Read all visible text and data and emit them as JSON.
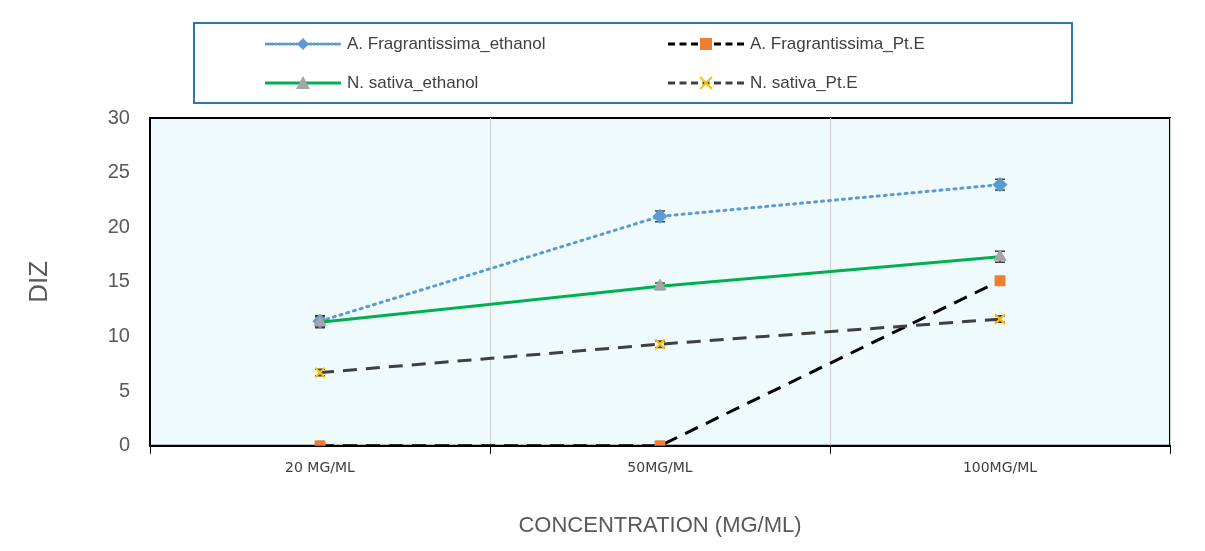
{
  "chart_data": {
    "type": "line",
    "xlabel": "CONCENTRATION (MG/ML)",
    "ylabel": "DIZ",
    "categories": [
      "20 MG/ML",
      "50MG/ML",
      "100MG/ML"
    ],
    "ylim": [
      0,
      30
    ],
    "yticks": [
      0,
      5,
      10,
      15,
      20,
      25,
      30
    ],
    "grid": "x",
    "legend": "top",
    "series": [
      {
        "name": "A. Fragrantissima_ethanol",
        "color": "#5b9bd5",
        "colors": [
          "#5b9bd5",
          "#5b9bd5",
          "#5b9bd5"
        ],
        "marker": "diamond",
        "line_style": "dotted",
        "values": [
          11.4,
          21,
          23.9
        ],
        "errors": [
          0.5,
          0.5,
          0.5
        ]
      },
      {
        "name": "A. Fragrantissima_Pt.E",
        "color": "#000000",
        "colors": [
          "#ed7d31",
          "#ed7d31",
          "#ed7d31"
        ],
        "marker": "square",
        "line_style": "dashed",
        "values": [
          0,
          0,
          15.1
        ]
      },
      {
        "name": "N. sativa_ethanol",
        "color": "#00b050",
        "colors": [
          "#a5a5a5",
          "#a5a5a5",
          "#a5a5a5"
        ],
        "marker": "triangle",
        "line_style": "solid",
        "values": [
          11.3,
          14.6,
          17.3
        ],
        "errors": [
          0.5,
          0.3,
          0.5
        ]
      },
      {
        "name": "N. sativa_Pt.E",
        "color": "#404040",
        "colors": [
          "#ffc000",
          "#ffc000",
          "#ffc000"
        ],
        "marker": "cross",
        "line_style": "dashed",
        "values": [
          6.7,
          9.3,
          11.6
        ],
        "errors": [
          0.3,
          0.3,
          0.3
        ]
      }
    ]
  }
}
